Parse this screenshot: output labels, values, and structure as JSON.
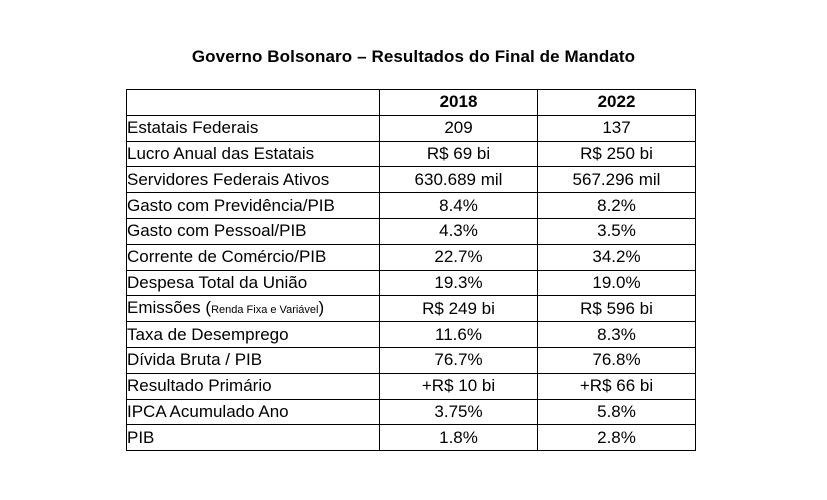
{
  "title": "Governo Bolsonaro – Resultados do Final de Mandato",
  "table": {
    "header": [
      "",
      "2018",
      "2022"
    ],
    "rows": [
      {
        "label": "Estatais Federais",
        "note": "",
        "label_tail": "",
        "v2018": "209",
        "v2022": "137"
      },
      {
        "label": "Lucro Anual das Estatais",
        "note": "",
        "label_tail": "",
        "v2018": "R$ 69 bi",
        "v2022": "R$ 250 bi"
      },
      {
        "label": "Servidores Federais Ativos",
        "note": "",
        "label_tail": "",
        "v2018": "630.689 mil",
        "v2022": "567.296 mil"
      },
      {
        "label": "Gasto com Previdência/PIB",
        "note": "",
        "label_tail": "",
        "v2018": "8.4%",
        "v2022": "8.2%"
      },
      {
        "label": "Gasto com Pessoal/PIB",
        "note": "",
        "label_tail": "",
        "v2018": "4.3%",
        "v2022": "3.5%"
      },
      {
        "label": "Corrente de Comércio/PIB",
        "note": "",
        "label_tail": "",
        "v2018": "22.7%",
        "v2022": "34.2%"
      },
      {
        "label": "Despesa Total da União",
        "note": "",
        "label_tail": "",
        "v2018": "19.3%",
        "v2022": "19.0%"
      },
      {
        "label": "Emissões (",
        "note": "Renda Fixa e Variável",
        "label_tail": ")",
        "v2018": "R$ 249 bi",
        "v2022": "R$ 596 bi"
      },
      {
        "label": "Taxa de Desemprego",
        "note": "",
        "label_tail": "",
        "v2018": "11.6%",
        "v2022": "8.3%"
      },
      {
        "label": "Dívida Bruta / PIB",
        "note": "",
        "label_tail": "",
        "v2018": "76.7%",
        "v2022": "76.8%"
      },
      {
        "label": "Resultado Primário",
        "note": "",
        "label_tail": "",
        "v2018": "+R$ 10 bi",
        "v2022": "+R$ 66 bi"
      },
      {
        "label": "IPCA Acumulado Ano",
        "note": "",
        "label_tail": "",
        "v2018": "3.75%",
        "v2022": "5.8%"
      },
      {
        "label": "PIB",
        "note": "",
        "label_tail": "",
        "v2018": "1.8%",
        "v2022": "2.8%"
      }
    ]
  }
}
